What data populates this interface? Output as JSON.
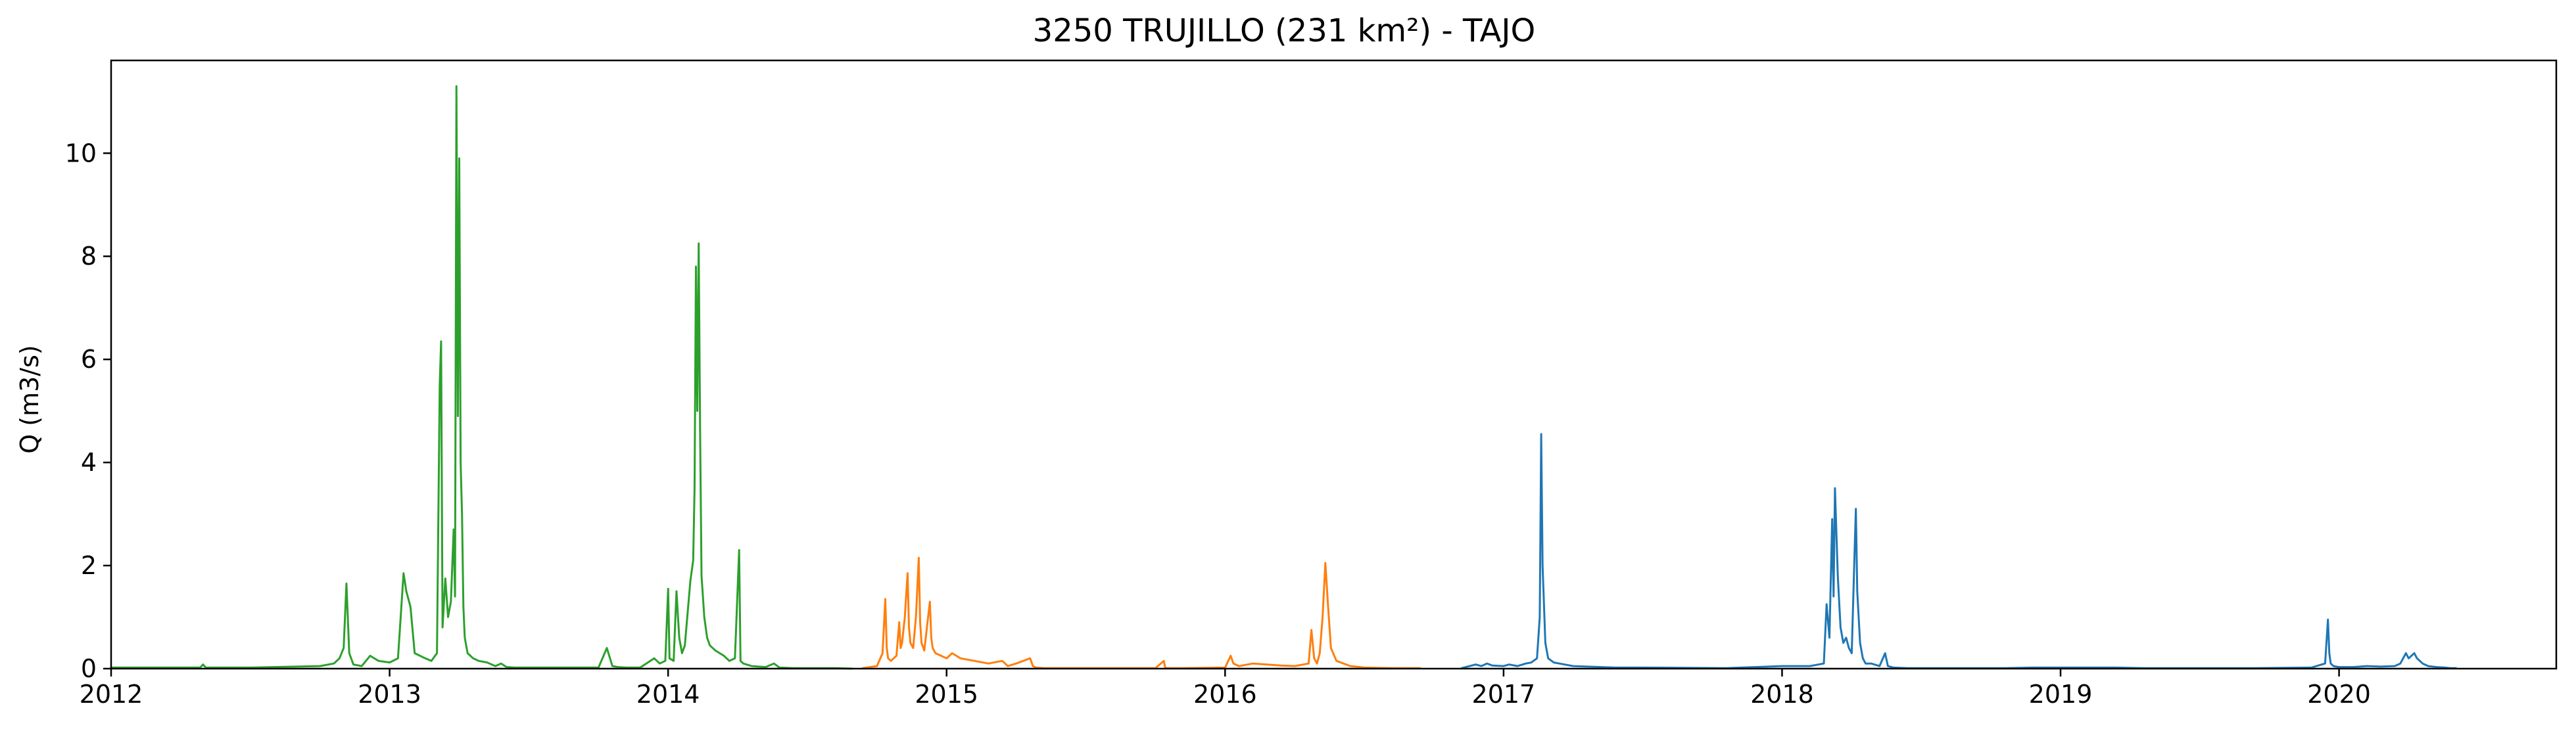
{
  "chart_data": {
    "type": "line",
    "title": "3250 TRUJILLO (231 km²) - TAJO",
    "xlabel": "",
    "ylabel": "Q (m3/s)",
    "xlim": [
      2012.0,
      2020.78
    ],
    "ylim": [
      0,
      11.8
    ],
    "x_ticks": [
      "2012",
      "2013",
      "2014",
      "2015",
      "2016",
      "2017",
      "2018",
      "2019",
      "2020"
    ],
    "y_ticks": [
      "0",
      "2",
      "4",
      "6",
      "8",
      "10"
    ],
    "grid": false,
    "series": [
      {
        "color": "#2ca02c",
        "x": [
          2012.0,
          2012.2,
          2012.32,
          2012.33,
          2012.34,
          2012.5,
          2012.75,
          2012.8,
          2012.82,
          2012.835,
          2012.845,
          2012.855,
          2012.87,
          2012.9,
          2012.93,
          2012.96,
          2013.0,
          2013.03,
          2013.05,
          2013.06,
          2013.075,
          2013.09,
          2013.12,
          2013.15,
          2013.17,
          2013.18,
          2013.185,
          2013.19,
          2013.2,
          2013.21,
          2013.22,
          2013.23,
          2013.235,
          2013.24,
          2013.245,
          2013.25,
          2013.255,
          2013.26,
          2013.265,
          2013.27,
          2013.28,
          2013.29,
          2013.3,
          2013.32,
          2013.35,
          2013.38,
          2013.4,
          2013.42,
          2013.45,
          2013.5,
          2013.6,
          2013.7,
          2013.75,
          2013.78,
          2013.8,
          2013.82,
          2013.85,
          2013.9,
          2013.95,
          2013.97,
          2013.99,
          2014.0,
          2014.005,
          2014.02,
          2014.03,
          2014.04,
          2014.05,
          2014.06,
          2014.08,
          2014.09,
          2014.095,
          2014.1,
          2014.105,
          2014.11,
          2014.115,
          2014.12,
          2014.13,
          2014.14,
          2014.15,
          2014.17,
          2014.2,
          2014.22,
          2014.24,
          2014.255,
          2014.26,
          2014.27,
          2014.3,
          2014.35,
          2014.38,
          2014.4,
          2014.45,
          2014.5,
          2014.6,
          2014.66
        ],
        "y": [
          0.02,
          0.02,
          0.02,
          0.08,
          0.02,
          0.02,
          0.05,
          0.1,
          0.2,
          0.4,
          1.65,
          0.3,
          0.08,
          0.05,
          0.25,
          0.15,
          0.12,
          0.2,
          1.85,
          1.5,
          1.2,
          0.3,
          0.22,
          0.15,
          0.3,
          5.5,
          6.35,
          0.8,
          1.75,
          1.0,
          1.3,
          2.7,
          1.4,
          11.3,
          4.9,
          9.9,
          4.0,
          3.0,
          1.2,
          0.6,
          0.3,
          0.25,
          0.2,
          0.15,
          0.12,
          0.05,
          0.1,
          0.03,
          0.02,
          0.02,
          0.02,
          0.02,
          0.02,
          0.4,
          0.05,
          0.03,
          0.02,
          0.02,
          0.2,
          0.1,
          0.15,
          1.55,
          0.2,
          0.15,
          1.5,
          0.6,
          0.3,
          0.45,
          1.7,
          2.1,
          3.5,
          7.8,
          5.0,
          8.25,
          4.5,
          1.8,
          1.0,
          0.6,
          0.45,
          0.35,
          0.25,
          0.15,
          0.2,
          2.3,
          0.15,
          0.1,
          0.05,
          0.03,
          0.1,
          0.02,
          0.01,
          0.01,
          0.01,
          0.0
        ]
      },
      {
        "color": "#ff7f0e",
        "x": [
          2014.7,
          2014.75,
          2014.77,
          2014.78,
          2014.785,
          2014.79,
          2014.8,
          2014.82,
          2014.83,
          2014.835,
          2014.84,
          2014.85,
          2014.86,
          2014.865,
          2014.87,
          2014.88,
          2014.89,
          2014.9,
          2014.905,
          2014.91,
          2014.92,
          2014.94,
          2014.945,
          2014.95,
          2014.96,
          2014.98,
          2015.0,
          2015.02,
          2015.05,
          2015.1,
          2015.15,
          2015.2,
          2015.22,
          2015.25,
          2015.3,
          2015.31,
          2015.32,
          2015.35,
          2015.4,
          2015.6,
          2015.75,
          2015.78,
          2015.785,
          2015.79,
          2015.85,
          2016.0,
          2016.02,
          2016.03,
          2016.05,
          2016.1,
          2016.15,
          2016.2,
          2016.25,
          2016.3,
          2016.31,
          2016.32,
          2016.33,
          2016.34,
          2016.35,
          2016.36,
          2016.37,
          2016.38,
          2016.4,
          2016.45,
          2016.5,
          2016.6,
          2016.7
        ],
        "y": [
          0.01,
          0.05,
          0.3,
          1.35,
          0.4,
          0.2,
          0.15,
          0.25,
          0.9,
          0.4,
          0.5,
          1.0,
          1.85,
          0.8,
          0.5,
          0.4,
          1.0,
          2.15,
          0.9,
          0.5,
          0.35,
          1.3,
          0.6,
          0.4,
          0.3,
          0.25,
          0.2,
          0.3,
          0.2,
          0.15,
          0.1,
          0.15,
          0.05,
          0.1,
          0.2,
          0.05,
          0.02,
          0.01,
          0.01,
          0.01,
          0.01,
          0.15,
          0.02,
          0.01,
          0.01,
          0.02,
          0.25,
          0.1,
          0.05,
          0.1,
          0.08,
          0.06,
          0.05,
          0.1,
          0.75,
          0.2,
          0.1,
          0.3,
          1.0,
          2.05,
          1.2,
          0.4,
          0.15,
          0.05,
          0.02,
          0.01,
          0.01
        ]
      },
      {
        "color": "#1f77b4",
        "x": [
          2016.85,
          2016.9,
          2016.92,
          2016.94,
          2016.96,
          2017.0,
          2017.02,
          2017.05,
          2017.08,
          2017.1,
          2017.12,
          2017.13,
          2017.135,
          2017.14,
          2017.15,
          2017.16,
          2017.18,
          2017.2,
          2017.25,
          2017.3,
          2017.35,
          2017.4,
          2017.5,
          2017.8,
          2018.0,
          2018.1,
          2018.15,
          2018.16,
          2018.17,
          2018.18,
          2018.185,
          2018.19,
          2018.2,
          2018.21,
          2018.22,
          2018.23,
          2018.24,
          2018.25,
          2018.26,
          2018.265,
          2018.27,
          2018.28,
          2018.29,
          2018.3,
          2018.32,
          2018.35,
          2018.37,
          2018.38,
          2018.4,
          2018.45,
          2018.5,
          2018.6,
          2018.8,
          2018.9,
          2019.0,
          2019.1,
          2019.2,
          2019.3,
          2019.4,
          2019.5,
          2019.7,
          2019.9,
          2019.95,
          2019.96,
          2019.965,
          2019.97,
          2019.98,
          2020.0,
          2020.05,
          2020.1,
          2020.15,
          2020.2,
          2020.22,
          2020.24,
          2020.25,
          2020.27,
          2020.28,
          2020.3,
          2020.32,
          2020.35,
          2020.38,
          2020.4,
          2020.42
        ],
        "y": [
          0.01,
          0.08,
          0.05,
          0.1,
          0.06,
          0.05,
          0.08,
          0.05,
          0.1,
          0.12,
          0.2,
          1.0,
          4.55,
          2.0,
          0.5,
          0.2,
          0.12,
          0.1,
          0.05,
          0.04,
          0.03,
          0.02,
          0.02,
          0.01,
          0.05,
          0.05,
          0.1,
          1.25,
          0.6,
          2.9,
          1.4,
          3.5,
          1.8,
          0.8,
          0.5,
          0.6,
          0.4,
          0.3,
          2.2,
          3.1,
          1.5,
          0.5,
          0.2,
          0.1,
          0.1,
          0.05,
          0.3,
          0.05,
          0.02,
          0.01,
          0.01,
          0.01,
          0.01,
          0.02,
          0.02,
          0.02,
          0.02,
          0.01,
          0.01,
          0.01,
          0.01,
          0.02,
          0.1,
          0.95,
          0.3,
          0.1,
          0.05,
          0.03,
          0.03,
          0.05,
          0.04,
          0.05,
          0.1,
          0.3,
          0.2,
          0.3,
          0.2,
          0.1,
          0.05,
          0.03,
          0.02,
          0.01,
          0.01
        ]
      }
    ]
  }
}
